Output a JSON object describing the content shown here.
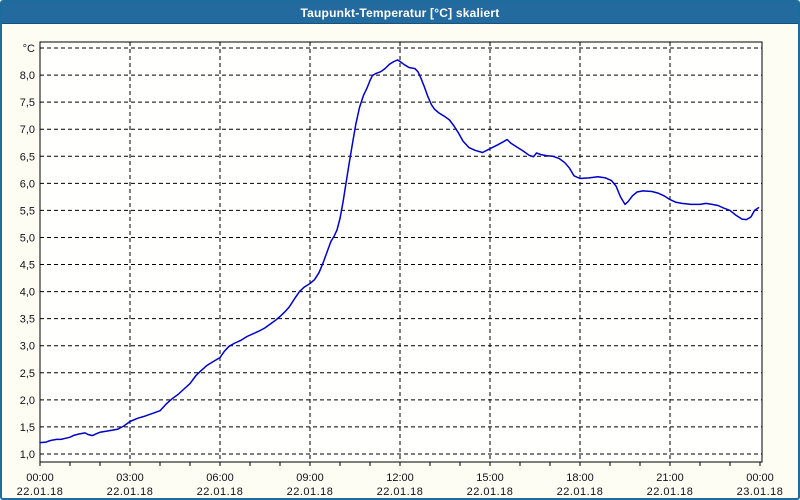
{
  "window": {
    "title": "Taupunkt-Temperatur [°C] skaliert"
  },
  "colors": {
    "titlebar": "#236B9E",
    "window_border": "#1E6B9E",
    "background": "#FDFDF4",
    "plot_background": "#FFFFFE",
    "grid": "#000000",
    "axis": "#000000",
    "label_text": "#101018",
    "line": "#0000C8"
  },
  "chart_data": {
    "type": "line",
    "title": "Taupunkt-Temperatur [°C] skaliert",
    "ylabel": "°C",
    "xlabel": "",
    "ylim": [
      1.0,
      8.5
    ],
    "xlim_hours": [
      0,
      24
    ],
    "grid": "dashed",
    "legend": "none",
    "yticks": [
      {
        "v": 8.0,
        "label": "8,0"
      },
      {
        "v": 7.5,
        "label": "7,5"
      },
      {
        "v": 7.0,
        "label": "7,0"
      },
      {
        "v": 6.5,
        "label": "6,5"
      },
      {
        "v": 6.0,
        "label": "6,0"
      },
      {
        "v": 5.5,
        "label": "5,5"
      },
      {
        "v": 5.0,
        "label": "5,0"
      },
      {
        "v": 4.5,
        "label": "4,5"
      },
      {
        "v": 4.0,
        "label": "4,0"
      },
      {
        "v": 3.5,
        "label": "3,5"
      },
      {
        "v": 3.0,
        "label": "3,0"
      },
      {
        "v": 2.5,
        "label": "2,5"
      },
      {
        "v": 2.0,
        "label": "2,0"
      },
      {
        "v": 1.5,
        "label": "1,5"
      },
      {
        "v": 1.0,
        "label": "1,0"
      }
    ],
    "xticks": [
      {
        "h": 0,
        "time": "00:00",
        "date": "22.01.18"
      },
      {
        "h": 3,
        "time": "03:00",
        "date": "22.01.18"
      },
      {
        "h": 6,
        "time": "06:00",
        "date": "22.01.18"
      },
      {
        "h": 9,
        "time": "09:00",
        "date": "22.01.18"
      },
      {
        "h": 12,
        "time": "12:00",
        "date": "22.01.18"
      },
      {
        "h": 15,
        "time": "15:00",
        "date": "22.01.18"
      },
      {
        "h": 18,
        "time": "18:00",
        "date": "22.01.18"
      },
      {
        "h": 21,
        "time": "21:00",
        "date": "22.01.18"
      },
      {
        "h": 24,
        "time": "00:00",
        "date": "23.01.18"
      }
    ],
    "minor_xtick_hours": 1,
    "series": [
      {
        "name": "Taupunkt-Temperatur",
        "color": "#0000C8",
        "points": [
          [
            0.0,
            1.21
          ],
          [
            0.2,
            1.22
          ],
          [
            0.35,
            1.25
          ],
          [
            0.55,
            1.27
          ],
          [
            0.7,
            1.27
          ],
          [
            0.85,
            1.29
          ],
          [
            1.0,
            1.31
          ],
          [
            1.15,
            1.35
          ],
          [
            1.3,
            1.37
          ],
          [
            1.5,
            1.39
          ],
          [
            1.6,
            1.36
          ],
          [
            1.75,
            1.34
          ],
          [
            1.9,
            1.38
          ],
          [
            2.0,
            1.4
          ],
          [
            2.2,
            1.42
          ],
          [
            2.4,
            1.44
          ],
          [
            2.6,
            1.46
          ],
          [
            2.8,
            1.52
          ],
          [
            3.0,
            1.6
          ],
          [
            3.25,
            1.66
          ],
          [
            3.5,
            1.7
          ],
          [
            3.75,
            1.75
          ],
          [
            4.0,
            1.8
          ],
          [
            4.2,
            1.92
          ],
          [
            4.4,
            2.02
          ],
          [
            4.6,
            2.1
          ],
          [
            4.8,
            2.2
          ],
          [
            5.0,
            2.3
          ],
          [
            5.2,
            2.45
          ],
          [
            5.35,
            2.53
          ],
          [
            5.55,
            2.63
          ],
          [
            5.75,
            2.7
          ],
          [
            6.0,
            2.78
          ],
          [
            6.15,
            2.9
          ],
          [
            6.3,
            2.99
          ],
          [
            6.5,
            3.05
          ],
          [
            6.7,
            3.1
          ],
          [
            6.9,
            3.17
          ],
          [
            7.1,
            3.22
          ],
          [
            7.3,
            3.27
          ],
          [
            7.5,
            3.33
          ],
          [
            7.7,
            3.41
          ],
          [
            7.85,
            3.47
          ],
          [
            8.0,
            3.54
          ],
          [
            8.15,
            3.62
          ],
          [
            8.3,
            3.71
          ],
          [
            8.5,
            3.88
          ],
          [
            8.65,
            4.0
          ],
          [
            8.8,
            4.08
          ],
          [
            9.0,
            4.15
          ],
          [
            9.15,
            4.22
          ],
          [
            9.3,
            4.35
          ],
          [
            9.45,
            4.55
          ],
          [
            9.6,
            4.78
          ],
          [
            9.7,
            4.93
          ],
          [
            9.8,
            5.02
          ],
          [
            9.9,
            5.14
          ],
          [
            10.0,
            5.35
          ],
          [
            10.1,
            5.65
          ],
          [
            10.2,
            6.0
          ],
          [
            10.3,
            6.35
          ],
          [
            10.42,
            6.75
          ],
          [
            10.53,
            7.1
          ],
          [
            10.65,
            7.4
          ],
          [
            10.78,
            7.62
          ],
          [
            10.9,
            7.76
          ],
          [
            11.0,
            7.9
          ],
          [
            11.08,
            7.99
          ],
          [
            11.2,
            8.03
          ],
          [
            11.35,
            8.06
          ],
          [
            11.5,
            8.12
          ],
          [
            11.65,
            8.2
          ],
          [
            11.8,
            8.25
          ],
          [
            11.92,
            8.28
          ],
          [
            12.0,
            8.25
          ],
          [
            12.15,
            8.19
          ],
          [
            12.3,
            8.14
          ],
          [
            12.5,
            8.12
          ],
          [
            12.6,
            8.06
          ],
          [
            12.7,
            7.94
          ],
          [
            12.82,
            7.77
          ],
          [
            12.93,
            7.6
          ],
          [
            13.05,
            7.45
          ],
          [
            13.15,
            7.37
          ],
          [
            13.3,
            7.3
          ],
          [
            13.5,
            7.23
          ],
          [
            13.65,
            7.17
          ],
          [
            13.8,
            7.06
          ],
          [
            13.95,
            6.93
          ],
          [
            14.1,
            6.78
          ],
          [
            14.3,
            6.66
          ],
          [
            14.5,
            6.61
          ],
          [
            14.75,
            6.57
          ],
          [
            15.0,
            6.64
          ],
          [
            15.25,
            6.71
          ],
          [
            15.45,
            6.77
          ],
          [
            15.57,
            6.81
          ],
          [
            15.7,
            6.74
          ],
          [
            15.9,
            6.67
          ],
          [
            16.1,
            6.6
          ],
          [
            16.3,
            6.52
          ],
          [
            16.45,
            6.49
          ],
          [
            16.55,
            6.56
          ],
          [
            16.7,
            6.53
          ],
          [
            16.9,
            6.51
          ],
          [
            17.1,
            6.5
          ],
          [
            17.3,
            6.46
          ],
          [
            17.5,
            6.38
          ],
          [
            17.65,
            6.28
          ],
          [
            17.8,
            6.14
          ],
          [
            18.0,
            6.09
          ],
          [
            18.3,
            6.1
          ],
          [
            18.6,
            6.12
          ],
          [
            18.85,
            6.1
          ],
          [
            19.05,
            6.05
          ],
          [
            19.2,
            5.95
          ],
          [
            19.35,
            5.75
          ],
          [
            19.5,
            5.61
          ],
          [
            19.6,
            5.66
          ],
          [
            19.75,
            5.77
          ],
          [
            19.9,
            5.84
          ],
          [
            20.1,
            5.86
          ],
          [
            20.4,
            5.85
          ],
          [
            20.6,
            5.82
          ],
          [
            20.8,
            5.77
          ],
          [
            21.0,
            5.7
          ],
          [
            21.2,
            5.65
          ],
          [
            21.4,
            5.63
          ],
          [
            21.7,
            5.61
          ],
          [
            22.0,
            5.61
          ],
          [
            22.2,
            5.63
          ],
          [
            22.4,
            5.61
          ],
          [
            22.6,
            5.59
          ],
          [
            22.8,
            5.54
          ],
          [
            23.0,
            5.5
          ],
          [
            23.2,
            5.41
          ],
          [
            23.4,
            5.34
          ],
          [
            23.55,
            5.33
          ],
          [
            23.7,
            5.38
          ],
          [
            23.82,
            5.5
          ],
          [
            23.95,
            5.55
          ]
        ]
      }
    ]
  }
}
